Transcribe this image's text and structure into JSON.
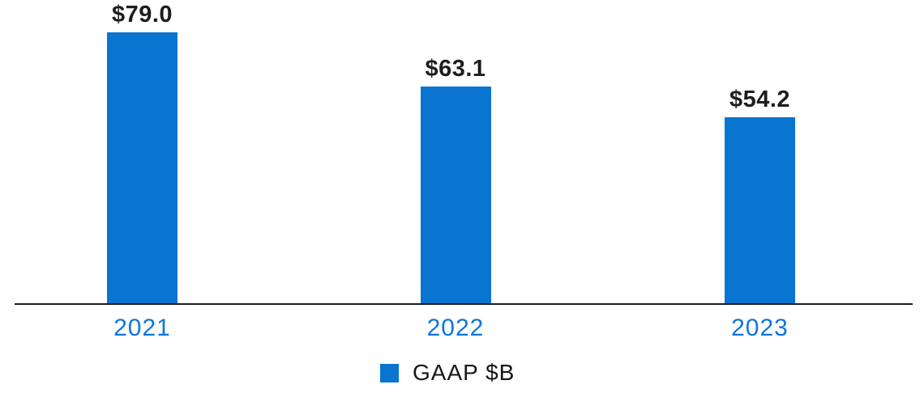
{
  "chart_data": {
    "type": "bar",
    "title": "",
    "xlabel": "",
    "ylabel": "",
    "categories": [
      "2021",
      "2022",
      "2023"
    ],
    "values": [
      79.0,
      63.1,
      54.2
    ],
    "value_labels": [
      "$79.0",
      "$63.1",
      "$54.2"
    ],
    "series": [
      {
        "name": "GAAP $B",
        "values": [
          79.0,
          63.1,
          54.2
        ]
      }
    ],
    "legend": {
      "label": "GAAP $B",
      "position": "bottom-center"
    },
    "ylim": [
      0,
      79
    ],
    "grid": false,
    "y_axis_visible": false,
    "colors": {
      "bar": "#0a74d1",
      "axis_line": "#1c1c1c",
      "category_label": "#0d76dd",
      "value_label": "#1e1c1c",
      "legend_text": "#161616",
      "background": "#ffffff"
    }
  }
}
